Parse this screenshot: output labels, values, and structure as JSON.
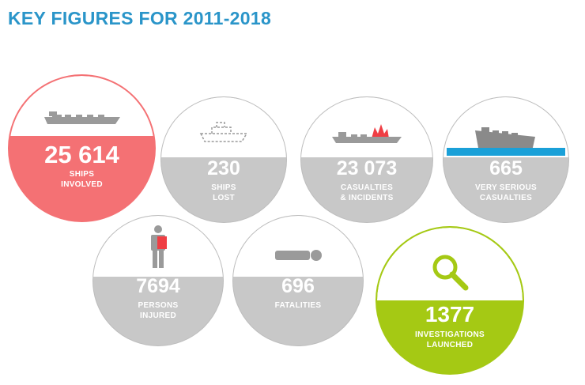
{
  "page": {
    "title": "KEY FIGURES FOR 2011-2018"
  },
  "colors": {
    "title": "#2a95c9",
    "grey_fill": "#c8c8c8",
    "grey_outline": "#bdbdbd",
    "red_fill": "#f47174",
    "red_outline": "#f47174",
    "green_fill": "#a5c914",
    "green_outline": "#a5c914",
    "icon_grey": "#9a9a9a",
    "icon_red": "#ef3e44",
    "icon_water": "#1aa0d8"
  },
  "figures": [
    {
      "value": "25 614",
      "label": "SHIPS\nINVOLVED",
      "icon": "cargo-ship-icon",
      "theme": "red"
    },
    {
      "value": "230",
      "label": "SHIPS\nLOST",
      "icon": "ship-outline-icon",
      "theme": "grey"
    },
    {
      "value": "23 073",
      "label": "CASUALTIES\n& INCIDENTS",
      "icon": "ship-fire-icon",
      "theme": "grey"
    },
    {
      "value": "665",
      "label": "VERY SERIOUS\nCASUALTIES",
      "icon": "sinking-ship-icon",
      "theme": "grey"
    },
    {
      "value": "7694",
      "label": "PERSONS\nINJURED",
      "icon": "injured-person-icon",
      "theme": "grey"
    },
    {
      "value": "696",
      "label": "FATALITIES",
      "icon": "lying-person-icon",
      "theme": "grey"
    },
    {
      "value": "1377",
      "label": "INVESTIGATIONS\nLAUNCHED",
      "icon": "magnifier-icon",
      "theme": "green"
    }
  ]
}
